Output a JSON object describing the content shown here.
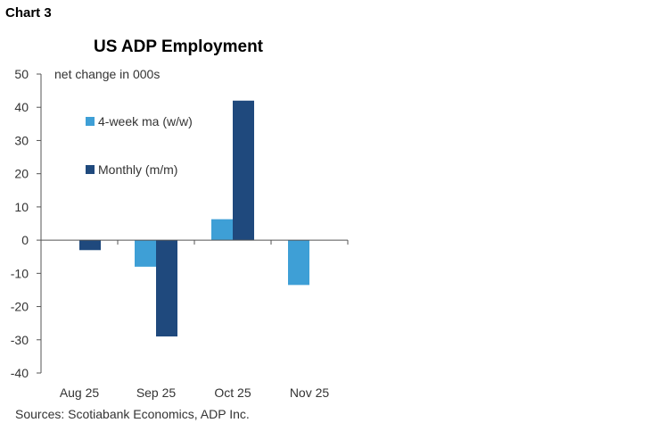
{
  "chart_label": "Chart 3",
  "source": "Sources: Scotiabank Economics, ADP Inc.",
  "chart_data": {
    "type": "bar",
    "title": "US ADP Employment",
    "ylabel": "net change in 000s",
    "categories": [
      "Aug 25",
      "Sep 25",
      "Oct 25",
      "Nov 25"
    ],
    "series": [
      {
        "name": "4-week ma (w/w)",
        "color": "#3e9fd6",
        "values": [
          0,
          -8,
          6.3,
          -13.5
        ]
      },
      {
        "name": "Monthly (m/m)",
        "color": "#1f497d",
        "values": [
          -3,
          -29,
          42,
          null
        ]
      }
    ],
    "ylim": [
      -40,
      50
    ],
    "yticks": [
      50,
      40,
      30,
      20,
      10,
      0,
      -10,
      -20,
      -30,
      -40
    ],
    "legend_position": "top-left",
    "grid": false
  }
}
